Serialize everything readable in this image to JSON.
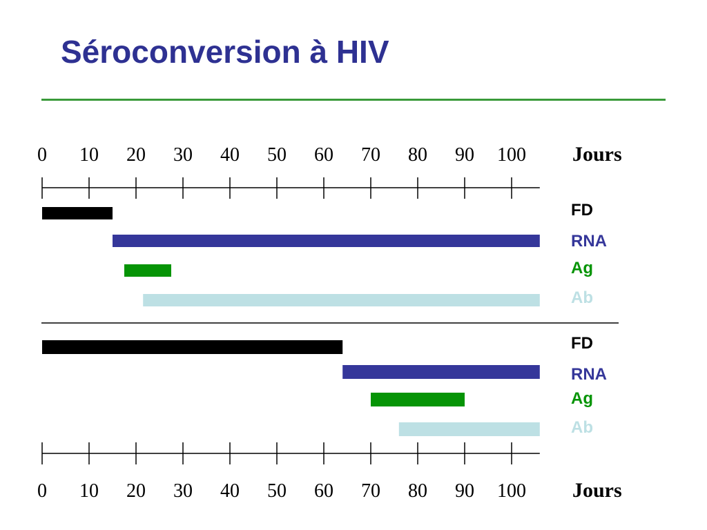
{
  "title": "Séroconversion à HIV",
  "colors": {
    "title": "#2e3192",
    "rule": "#3a9a3a",
    "FD": "#000000",
    "RNA": "#35379a",
    "Ag": "#069406",
    "Ab": "#bde0e4"
  },
  "chart_data": [
    {
      "type": "bar",
      "orientation": "horizontal-range",
      "xlabel": "Jours",
      "xticks": [
        0,
        10,
        20,
        30,
        40,
        50,
        60,
        70,
        80,
        90,
        100
      ],
      "xlim": [
        0,
        106
      ],
      "series": [
        {
          "name": "FD",
          "start": 0,
          "end": 15
        },
        {
          "name": "RNA",
          "start": 15,
          "end": 106
        },
        {
          "name": "Ag",
          "start": 17.5,
          "end": 27.5
        },
        {
          "name": "Ab",
          "start": 21.5,
          "end": 106
        }
      ]
    },
    {
      "type": "bar",
      "orientation": "horizontal-range",
      "xlabel": "Jours",
      "xticks": [
        0,
        10,
        20,
        30,
        40,
        50,
        60,
        70,
        80,
        90,
        100
      ],
      "xlim": [
        0,
        106
      ],
      "series": [
        {
          "name": "FD",
          "start": 0,
          "end": 64
        },
        {
          "name": "RNA",
          "start": 64,
          "end": 106
        },
        {
          "name": "Ag",
          "start": 70,
          "end": 90
        },
        {
          "name": "Ab",
          "start": 76,
          "end": 106
        }
      ]
    }
  ]
}
